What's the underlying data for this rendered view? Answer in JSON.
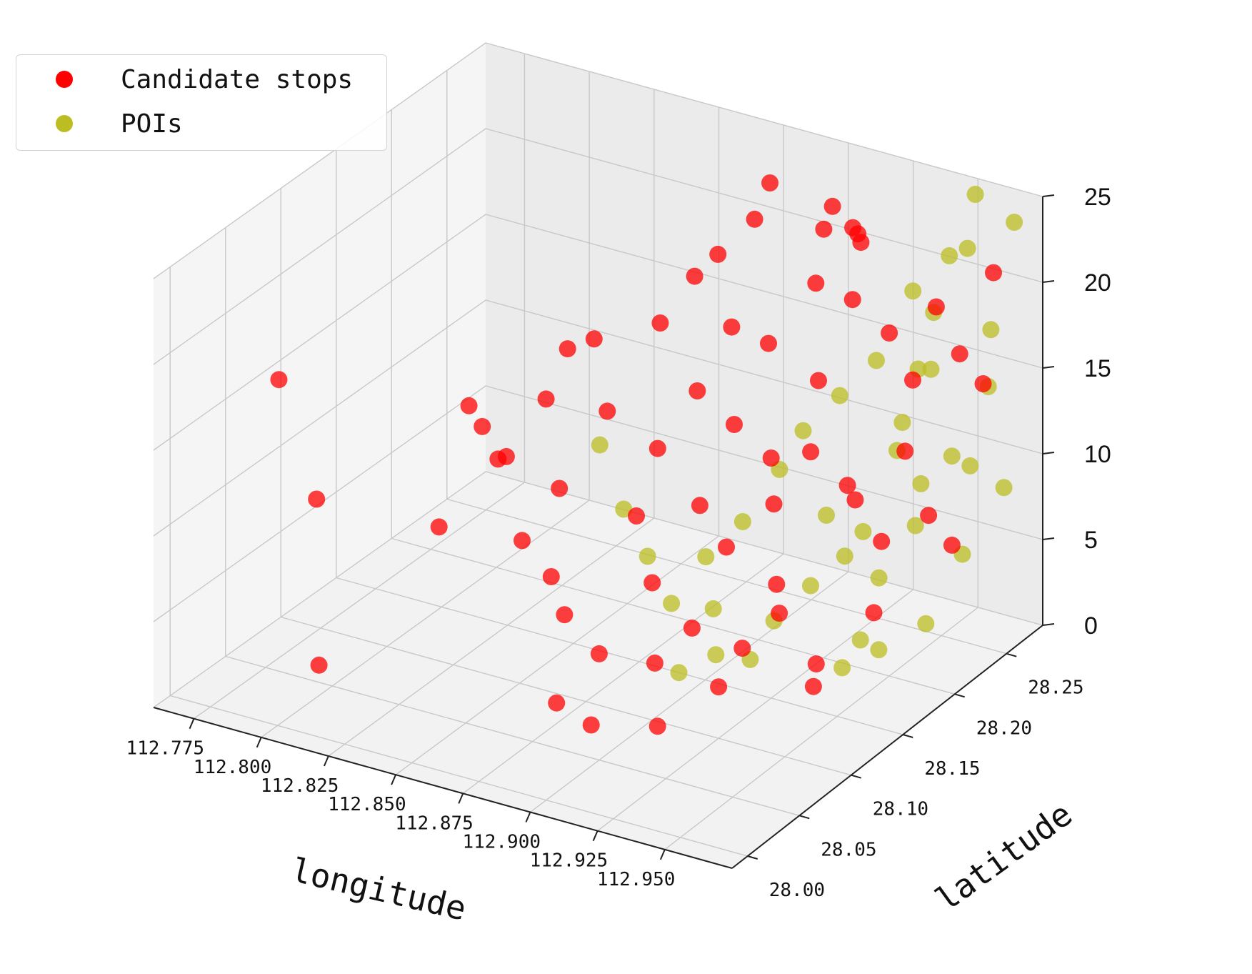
{
  "chart_data": {
    "type": "scatter",
    "title": "",
    "xlabel": "longitude",
    "ylabel": "latitude",
    "zlabel": "",
    "xlim": [
      112.76,
      112.975
    ],
    "ylim": [
      27.985,
      28.285
    ],
    "zlim": [
      0,
      25
    ],
    "x_ticks": [
      "112.775",
      "112.800",
      "112.825",
      "112.850",
      "112.875",
      "112.900",
      "112.925",
      "112.950"
    ],
    "y_ticks": [
      "28.00",
      "28.05",
      "28.10",
      "28.15",
      "28.20",
      "28.25"
    ],
    "z_ticks": [
      "0",
      "5",
      "10",
      "15",
      "20",
      "25"
    ],
    "grid": true,
    "legend_position": "top-left",
    "colors": {
      "candidate_stops": "#ff0000",
      "pois": "#bcbd22"
    },
    "series": [
      {
        "name": "Candidate stops",
        "color": "#ff0000",
        "points": [
          [
            112.78,
            28.05,
            17
          ],
          [
            112.79,
            28.06,
            10
          ],
          [
            112.795,
            28.05,
            1
          ],
          [
            112.835,
            28.09,
            16
          ],
          [
            112.84,
            28.09,
            15
          ],
          [
            112.845,
            28.1,
            13
          ],
          [
            112.84,
            28.05,
            11
          ],
          [
            112.85,
            28.08,
            14
          ],
          [
            112.855,
            28.09,
            9
          ],
          [
            112.86,
            28.1,
            17
          ],
          [
            112.86,
            28.12,
            19
          ],
          [
            112.87,
            28.12,
            20
          ],
          [
            112.865,
            28.1,
            12
          ],
          [
            112.87,
            28.08,
            8
          ],
          [
            112.875,
            28.12,
            16
          ],
          [
            112.875,
            28.08,
            6
          ],
          [
            112.88,
            28.1,
            3
          ],
          [
            112.88,
            28.06,
            2
          ],
          [
            112.885,
            28.08,
            0
          ],
          [
            112.89,
            28.11,
            11
          ],
          [
            112.89,
            28.13,
            14
          ],
          [
            112.895,
            28.12,
            22
          ],
          [
            112.9,
            28.14,
            24
          ],
          [
            112.9,
            28.1,
            8
          ],
          [
            112.905,
            28.13,
            18
          ],
          [
            112.905,
            28.09,
            4
          ],
          [
            112.91,
            28.15,
            21
          ],
          [
            112.91,
            28.12,
            12
          ],
          [
            112.91,
            28.08,
            1
          ],
          [
            112.915,
            28.14,
            16
          ],
          [
            112.915,
            28.1,
            6
          ],
          [
            112.92,
            28.16,
            20
          ],
          [
            112.92,
            28.12,
            10
          ],
          [
            112.925,
            28.15,
            14
          ],
          [
            112.925,
            28.1,
            3
          ],
          [
            112.93,
            28.18,
            23
          ],
          [
            112.93,
            28.14,
            12
          ],
          [
            112.93,
            28.11,
            5
          ],
          [
            112.935,
            28.17,
            18
          ],
          [
            112.935,
            28.13,
            8
          ],
          [
            112.94,
            28.19,
            22
          ],
          [
            112.94,
            28.15,
            15
          ],
          [
            112.94,
            28.12,
            7
          ],
          [
            112.945,
            28.18,
            11
          ],
          [
            112.945,
            28.14,
            2
          ],
          [
            112.95,
            28.2,
            20
          ],
          [
            112.95,
            28.16,
            13
          ],
          [
            112.95,
            28.13,
            4
          ],
          [
            112.955,
            28.21,
            17
          ],
          [
            112.955,
            28.18,
            9
          ],
          [
            112.96,
            28.22,
            21
          ],
          [
            112.96,
            28.19,
            14
          ],
          [
            112.96,
            28.16,
            6
          ],
          [
            112.965,
            28.23,
            18
          ],
          [
            112.965,
            28.2,
            10
          ],
          [
            112.97,
            28.24,
            16
          ],
          [
            112.97,
            28.21,
            8
          ],
          [
            112.97,
            28.25,
            22
          ],
          [
            112.925,
            28.2,
            25
          ],
          [
            112.93,
            28.22,
            24
          ],
          [
            112.92,
            28.24,
            23
          ],
          [
            112.915,
            28.26,
            21
          ],
          [
            112.9,
            28.27,
            22
          ],
          [
            112.88,
            28.26,
            23
          ],
          [
            112.87,
            28.27,
            20
          ],
          [
            112.86,
            28.26,
            18
          ]
        ]
      },
      {
        "name": "POIs",
        "color": "#bcbd22",
        "points": [
          [
            112.94,
            28.2,
            8
          ],
          [
            112.945,
            28.22,
            12
          ],
          [
            112.95,
            28.24,
            16
          ],
          [
            112.955,
            28.23,
            20
          ],
          [
            112.96,
            28.25,
            23
          ],
          [
            112.965,
            28.26,
            18
          ],
          [
            112.97,
            28.27,
            24
          ],
          [
            112.96,
            28.27,
            14
          ],
          [
            112.95,
            28.26,
            10
          ],
          [
            112.94,
            28.25,
            6
          ],
          [
            112.93,
            28.24,
            3
          ],
          [
            112.935,
            28.21,
            1
          ],
          [
            112.925,
            28.22,
            5
          ],
          [
            112.945,
            28.27,
            21
          ],
          [
            112.955,
            28.27,
            25
          ],
          [
            112.965,
            28.24,
            11
          ],
          [
            112.97,
            28.22,
            7
          ],
          [
            112.96,
            28.21,
            3
          ],
          [
            112.95,
            28.19,
            2
          ],
          [
            112.94,
            28.18,
            1
          ],
          [
            112.93,
            28.19,
            9
          ],
          [
            112.92,
            28.2,
            4
          ],
          [
            112.91,
            28.19,
            2
          ],
          [
            112.905,
            28.18,
            0
          ],
          [
            112.9,
            28.16,
            1
          ],
          [
            112.895,
            28.17,
            3
          ],
          [
            112.89,
            28.15,
            0
          ],
          [
            112.935,
            28.26,
            19
          ],
          [
            112.925,
            28.25,
            15
          ],
          [
            112.915,
            28.24,
            13
          ],
          [
            112.905,
            28.23,
            11
          ],
          [
            112.9,
            28.22,
            9
          ],
          [
            112.89,
            28.21,
            6
          ],
          [
            112.88,
            28.2,
            4
          ],
          [
            112.875,
            28.18,
            2
          ],
          [
            112.87,
            28.17,
            5
          ],
          [
            112.865,
            28.16,
            8
          ],
          [
            112.86,
            28.15,
            12
          ],
          [
            112.955,
            28.2,
            15
          ],
          [
            112.965,
            28.19,
            19
          ],
          [
            112.97,
            28.18,
            13
          ],
          [
            112.97,
            28.26,
            9
          ]
        ]
      }
    ]
  }
}
